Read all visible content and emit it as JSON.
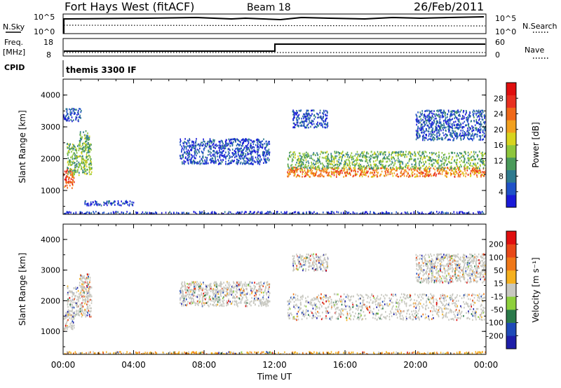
{
  "header": {
    "station": "Fort Hays West (fitACF)",
    "beam": "Beam 18",
    "date": "26/Feb/2011"
  },
  "strip_labels": {
    "nsky": "N.Sky",
    "nsearch": "N.Search",
    "freq": "Freq.",
    "freq_unit": "[MHz]",
    "nave": "Nave",
    "cpid": "CPID",
    "cpid_value": "themis 3300 IF",
    "log_hi": "10^5",
    "log_lo": "10^0",
    "freq_hi": "18",
    "freq_lo": "8",
    "nave_hi": "60",
    "nave_lo": "0"
  },
  "chart_data": [
    {
      "type": "heatmap",
      "panel": "power",
      "ylabel": "Slant Range [km]",
      "yticks": [
        "1000",
        "2000",
        "3000",
        "4000"
      ],
      "ylim": [
        250,
        4500
      ],
      "xlim": [
        0,
        24
      ],
      "colorbar_label": "Power [dB]",
      "colorbar_ticks": [
        "4",
        "8",
        "12",
        "16",
        "20",
        "24",
        "28"
      ],
      "colorbar_colors": [
        "#1a1ad8",
        "#1f52c8",
        "#2e7a8e",
        "#4a9a5a",
        "#8ec63c",
        "#d8d41e",
        "#f2a01e",
        "#f06818",
        "#e83020",
        "#e00f0f"
      ],
      "regions": [
        {
          "t0": 0.0,
          "t1": 0.6,
          "r0": 1100,
          "r1": 1700,
          "level": 0.82
        },
        {
          "t0": 0.2,
          "t1": 1.6,
          "r0": 1500,
          "r1": 2500,
          "level": 0.4
        },
        {
          "t0": 0.9,
          "t1": 1.5,
          "r0": 2300,
          "r1": 2900,
          "level": 0.35
        },
        {
          "t0": 0.0,
          "t1": 1.0,
          "r0": 3200,
          "r1": 3600,
          "level": 0.1
        },
        {
          "t0": 6.6,
          "t1": 11.7,
          "r0": 1850,
          "r1": 2650,
          "level": 0.1
        },
        {
          "t0": 12.7,
          "t1": 24.0,
          "r0": 1450,
          "r1": 1750,
          "level": 0.74
        },
        {
          "t0": 12.7,
          "t1": 24.0,
          "r0": 1700,
          "r1": 2250,
          "level": 0.38
        },
        {
          "t0": 13.0,
          "t1": 15.0,
          "r0": 3000,
          "r1": 3550,
          "level": 0.1
        },
        {
          "t0": 20.0,
          "t1": 24.0,
          "r0": 2600,
          "r1": 3550,
          "level": 0.12
        },
        {
          "t0": 1.2,
          "t1": 4.0,
          "r0": 550,
          "r1": 700,
          "level": 0.05
        },
        {
          "t0": 0.0,
          "t1": 24.0,
          "r0": 260,
          "r1": 360,
          "level": 0.05
        }
      ]
    },
    {
      "type": "heatmap",
      "panel": "velocity",
      "ylabel": "Slant Range [km]",
      "yticks": [
        "1000",
        "2000",
        "3000",
        "4000"
      ],
      "ylim": [
        250,
        4500
      ],
      "xlim": [
        0,
        24
      ],
      "xlabel": "Time UT",
      "xticks": [
        "00:00",
        "04:00",
        "08:00",
        "12:00",
        "16:00",
        "20:00",
        "00:00"
      ],
      "colorbar_label": "Velocity [m s⁻¹]",
      "colorbar_ticks": [
        "200",
        "100",
        "50",
        "15",
        "-15",
        "-50",
        "-100",
        "-200"
      ],
      "colorbar_colors": [
        "#1e1ea8",
        "#1f4ab8",
        "#2a7a4a",
        "#8ed03c",
        "#c8c8c0",
        "#f5b01e",
        "#f07818",
        "#e84818",
        "#e00f0f"
      ],
      "regions": [
        {
          "t0": 0.0,
          "t1": 0.6,
          "r0": 1100,
          "r1": 1700,
          "level": 0.5
        },
        {
          "t0": 0.2,
          "t1": 1.6,
          "r0": 1500,
          "r1": 2500,
          "level": 0.5
        },
        {
          "t0": 0.9,
          "t1": 1.5,
          "r0": 2300,
          "r1": 2900,
          "level": 0.5
        },
        {
          "t0": 6.6,
          "t1": 11.7,
          "r0": 1850,
          "r1": 2650,
          "level": 0.5
        },
        {
          "t0": 12.7,
          "t1": 24.0,
          "r0": 1400,
          "r1": 2250,
          "level": 0.5
        },
        {
          "t0": 13.0,
          "t1": 15.0,
          "r0": 3000,
          "r1": 3550,
          "level": 0.5
        },
        {
          "t0": 20.0,
          "t1": 24.0,
          "r0": 2600,
          "r1": 3550,
          "level": 0.5
        },
        {
          "t0": 0.0,
          "t1": 24.0,
          "r0": 260,
          "r1": 360,
          "level": 0.7
        }
      ]
    }
  ]
}
